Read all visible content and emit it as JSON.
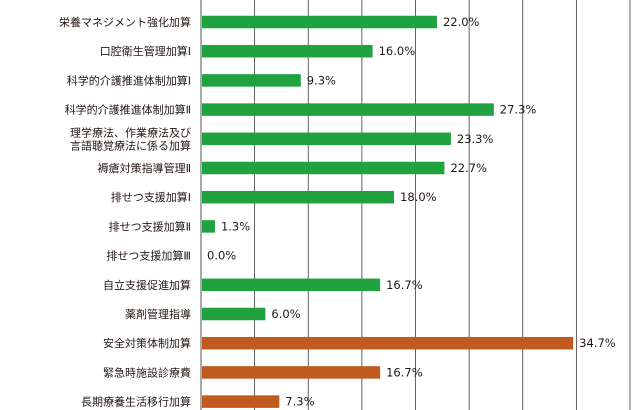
{
  "chart_data": {
    "type": "bar",
    "orientation": "horizontal",
    "xlim": [
      0,
      40
    ],
    "grid": true,
    "colors": {
      "green": "#1fa23f",
      "orange": "#c05a1f"
    },
    "categories": [
      [
        "栄養マネジメント強化加算"
      ],
      [
        "口腔衛生管理加算Ⅰ"
      ],
      [
        "科学的介護推進体制加算Ⅰ"
      ],
      [
        "科学的介護推進体制加算Ⅱ"
      ],
      [
        "理学療法、作業療法及び",
        "言語聴覚療法に係る加算"
      ],
      [
        "褥瘡対策指導管理Ⅱ"
      ],
      [
        "排せつ支援加算Ⅰ"
      ],
      [
        "排せつ支援加算Ⅱ"
      ],
      [
        "排せつ支援加算Ⅲ"
      ],
      [
        "自立支援促進加算"
      ],
      [
        "薬剤管理指導"
      ],
      [
        "安全対策体制加算"
      ],
      [
        "緊急時施設診療費"
      ],
      [
        "長期療養生活移行加算"
      ]
    ],
    "values": [
      22.0,
      16.0,
      9.3,
      27.3,
      23.3,
      22.7,
      18.0,
      1.3,
      0.0,
      16.7,
      6.0,
      34.7,
      16.7,
      7.3
    ],
    "value_labels": [
      "22.0%",
      "16.0%",
      "9.3%",
      "27.3%",
      "23.3%",
      "22.7%",
      "18.0%",
      "1.3%",
      "0.0%",
      "16.7%",
      "6.0%",
      "34.7%",
      "16.7%",
      "7.3%"
    ],
    "bar_colors": [
      "green",
      "green",
      "green",
      "green",
      "green",
      "green",
      "green",
      "green",
      "green",
      "green",
      "green",
      "orange",
      "orange",
      "orange"
    ]
  }
}
